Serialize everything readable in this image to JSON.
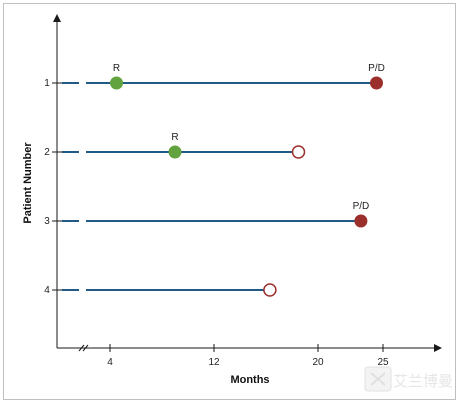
{
  "chart_data": {
    "type": "swimmer",
    "xlabel": "Months",
    "ylabel": "Patient Number",
    "x_ticks": [
      4,
      12,
      20,
      25
    ],
    "xlim": [
      0,
      29
    ],
    "axis_break": true,
    "grid": false,
    "colors": {
      "bar": "#1f5b85",
      "response": "#62a33f",
      "progression": "#9b2f2c",
      "censored_stroke": "#9b2f2c",
      "censored_fill": "#ffffff",
      "axis": "#1a1a1a"
    },
    "patients": [
      {
        "id": "1",
        "start": 0,
        "end": 24.5,
        "events": [
          {
            "type": "response",
            "x": 4.5,
            "label": "R"
          },
          {
            "type": "progression",
            "x": 24.5,
            "label": "P/D"
          }
        ]
      },
      {
        "id": "2",
        "start": 0,
        "end": 18.5,
        "events": [
          {
            "type": "response",
            "x": 9,
            "label": "R"
          },
          {
            "type": "censored",
            "x": 18.5,
            "label": ""
          }
        ]
      },
      {
        "id": "3",
        "start": 0,
        "end": 23.3,
        "events": [
          {
            "type": "progression",
            "x": 23.3,
            "label": "P/D"
          }
        ]
      },
      {
        "id": "4",
        "start": 0,
        "end": 16.3,
        "events": [
          {
            "type": "censored",
            "x": 16.3,
            "label": ""
          }
        ]
      }
    ]
  },
  "watermark": {
    "text": "艾兰博曼"
  }
}
